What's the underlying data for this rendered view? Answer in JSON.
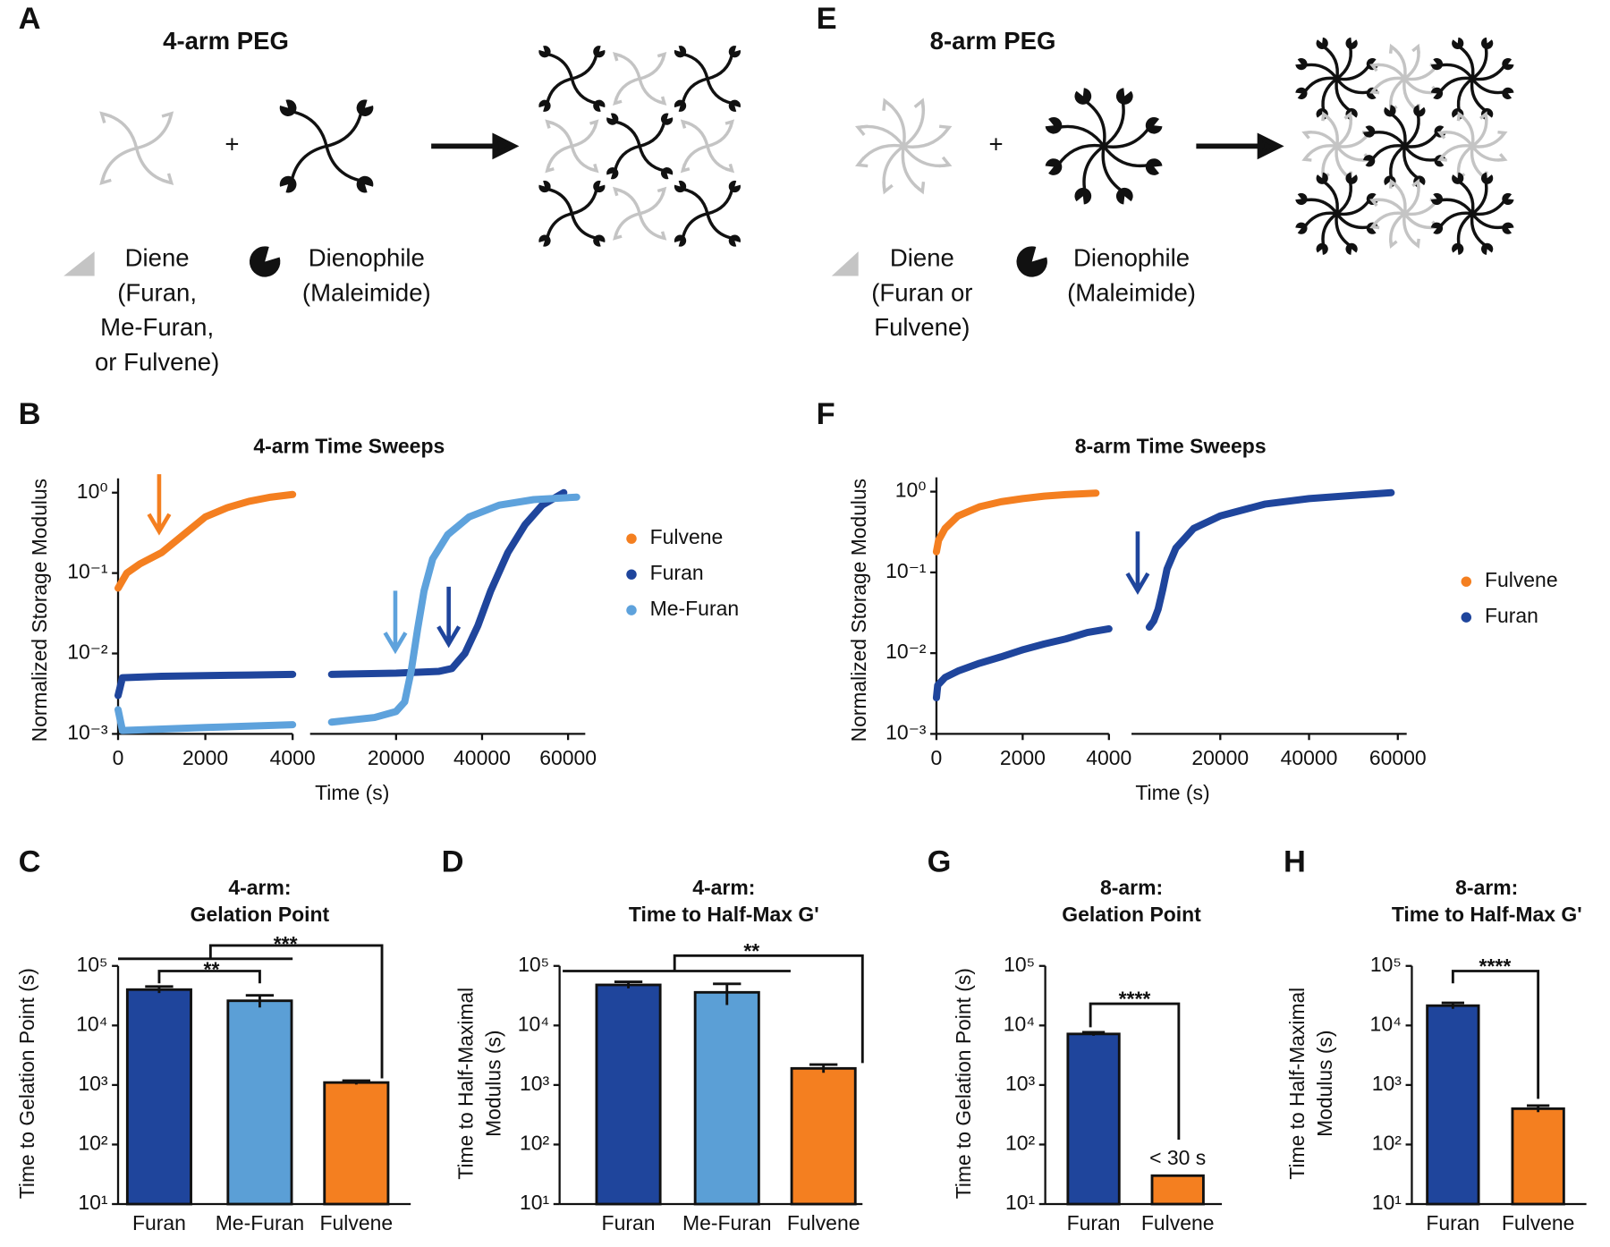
{
  "diagrams": [
    {
      "panel": "A",
      "title": "4-arm PEG",
      "plus": "+",
      "diene": [
        "Diene",
        "(Furan,",
        "Me-Furan,",
        "or Fulvene)"
      ],
      "dienophile": [
        "Dienophile",
        "(Maleimide)"
      ]
    },
    {
      "panel": "E",
      "title": "8-arm PEG",
      "plus": "+",
      "diene": [
        "Diene",
        "(Furan or",
        "Fulvene)"
      ],
      "dienophile": [
        "Dienophile",
        "(Maleimide)"
      ]
    }
  ],
  "chart_data": [
    {
      "panel": "B",
      "type": "line",
      "title": "4-arm Time Sweeps",
      "y_label": "Normalized Storage Modulus",
      "x_label": "Time (s)",
      "y_scale": "log",
      "ylim": [
        0.001,
        1
      ],
      "yticks": [
        {
          "value": 0.001,
          "label": "10⁻³"
        },
        {
          "value": 0.01,
          "label": "10⁻²"
        },
        {
          "value": 0.1,
          "label": "10⁻¹"
        },
        {
          "value": 1,
          "label": "10⁰"
        }
      ],
      "x_segments": [
        {
          "xlim": [
            0,
            4000
          ],
          "xticks": [
            0,
            2000,
            4000
          ]
        },
        {
          "xlim": [
            0,
            64000
          ],
          "xticks": [
            20000,
            40000,
            60000
          ]
        }
      ],
      "legend": "right",
      "series": [
        {
          "name": "Fulvene",
          "color": "#f47f20",
          "x": [
            0,
            200,
            500,
            1000,
            1500,
            2000,
            2500,
            3000,
            3500,
            4000
          ],
          "values": [
            0.065,
            0.1,
            0.13,
            0.18,
            0.3,
            0.5,
            0.65,
            0.78,
            0.88,
            0.95
          ]
        },
        {
          "name": "Furan",
          "color": "#1f459c",
          "x": [
            0,
            100,
            1000,
            2000,
            3000,
            4000,
            null,
            5000,
            20000,
            30000,
            33000,
            36000,
            39000,
            42000,
            46000,
            50000,
            54000,
            59000
          ],
          "values": [
            0.003,
            0.005,
            0.0052,
            0.0053,
            0.0054,
            0.0055,
            null,
            0.0055,
            0.0057,
            0.006,
            0.0065,
            0.01,
            0.022,
            0.06,
            0.18,
            0.4,
            0.7,
            1.0
          ]
        },
        {
          "name": "Me-Furan",
          "color": "#5ea2dc",
          "x": [
            0,
            100,
            2000,
            4000,
            null,
            5000,
            15000,
            20000,
            22000,
            23500,
            25000,
            26500,
            28500,
            32000,
            37000,
            44000,
            52000,
            62000
          ],
          "values": [
            0.002,
            0.0011,
            0.0012,
            0.0013,
            null,
            0.0014,
            0.0016,
            0.0019,
            0.0025,
            0.006,
            0.02,
            0.06,
            0.15,
            0.3,
            0.5,
            0.7,
            0.82,
            0.88
          ]
        }
      ]
    },
    {
      "panel": "F",
      "type": "line",
      "title": "8-arm Time Sweeps",
      "y_label": "Normalized Storage Modulus",
      "x_label": "Time (s)",
      "y_scale": "log",
      "ylim": [
        0.001,
        1
      ],
      "yticks": [
        {
          "value": 0.001,
          "label": "10⁻³"
        },
        {
          "value": 0.01,
          "label": "10⁻²"
        },
        {
          "value": 0.1,
          "label": "10⁻¹"
        },
        {
          "value": 1,
          "label": "10⁰"
        }
      ],
      "x_segments": [
        {
          "xlim": [
            0,
            4000
          ],
          "xticks": [
            0,
            2000,
            4000
          ]
        },
        {
          "xlim": [
            0,
            62000
          ],
          "xticks": [
            20000,
            40000,
            60000
          ]
        }
      ],
      "legend": "right",
      "series": [
        {
          "name": "Fulvene",
          "color": "#f47f20",
          "x": [
            0,
            50,
            200,
            500,
            1000,
            1500,
            2000,
            2500,
            3000,
            3700
          ],
          "values": [
            0.18,
            0.25,
            0.35,
            0.5,
            0.65,
            0.75,
            0.82,
            0.88,
            0.92,
            0.96
          ]
        },
        {
          "name": "Furan",
          "color": "#1f459c",
          "x": [
            0,
            30,
            200,
            500,
            1000,
            1500,
            2000,
            2500,
            3000,
            3500,
            4000,
            null,
            4000,
            5000,
            6000,
            7000,
            8000,
            10000,
            14000,
            20000,
            30000,
            40000,
            50000,
            58500
          ],
          "values": [
            0.0028,
            0.004,
            0.005,
            0.006,
            0.0075,
            0.009,
            0.011,
            0.013,
            0.015,
            0.018,
            0.02,
            null,
            0.021,
            0.025,
            0.035,
            0.06,
            0.11,
            0.2,
            0.35,
            0.5,
            0.7,
            0.82,
            0.9,
            0.97
          ]
        }
      ]
    },
    {
      "panel": "C",
      "type": "bar",
      "title": [
        "4-arm:",
        "Gelation Point"
      ],
      "y_label": [
        "Time to Gelation Point (s)"
      ],
      "y_scale": "log",
      "ylim": [
        10,
        100000
      ],
      "yticks": [
        {
          "value": 10,
          "label": "10¹"
        },
        {
          "value": 100,
          "label": "10²"
        },
        {
          "value": 1000,
          "label": "10³"
        },
        {
          "value": 10000,
          "label": "10⁴"
        },
        {
          "value": 100000,
          "label": "10⁵"
        }
      ],
      "categories": [
        "Furan",
        "Me-Furan",
        "Fulvene"
      ],
      "values": [
        40000,
        26000,
        1100
      ],
      "errors": [
        5000,
        6000,
        80
      ],
      "colors": [
        "#1f459c",
        "#5b9fd6",
        "#f47f20"
      ],
      "annotations": [
        "**",
        "***"
      ]
    },
    {
      "panel": "D",
      "type": "bar",
      "title": [
        "4-arm:",
        "Time to Half-Max G'"
      ],
      "y_label": [
        "Time to Half-Maximal",
        "Modulus (s)"
      ],
      "y_scale": "log",
      "ylim": [
        10,
        100000
      ],
      "yticks": [
        {
          "value": 10,
          "label": "10¹"
        },
        {
          "value": 100,
          "label": "10²"
        },
        {
          "value": 1000,
          "label": "10³"
        },
        {
          "value": 10000,
          "label": "10⁴"
        },
        {
          "value": 100000,
          "label": "10⁵"
        }
      ],
      "categories": [
        "Furan",
        "Me-Furan",
        "Fulvene"
      ],
      "values": [
        48000,
        36000,
        1900
      ],
      "errors": [
        6000,
        14000,
        300
      ],
      "colors": [
        "#1f459c",
        "#5b9fd6",
        "#f47f20"
      ],
      "annotations": [
        "**"
      ]
    },
    {
      "panel": "G",
      "type": "bar",
      "title": [
        "8-arm:",
        "Gelation Point"
      ],
      "y_label": [
        "Time to Gelation Point (s)"
      ],
      "y_scale": "log",
      "ylim": [
        10,
        100000
      ],
      "yticks": [
        {
          "value": 10,
          "label": "10¹"
        },
        {
          "value": 100,
          "label": "10²"
        },
        {
          "value": 1000,
          "label": "10³"
        },
        {
          "value": 10000,
          "label": "10⁴"
        },
        {
          "value": 100000,
          "label": "10⁵"
        }
      ],
      "categories": [
        "Furan",
        "Fulvene"
      ],
      "values": [
        7200,
        30
      ],
      "errors": [
        500,
        null
      ],
      "value_labels": [
        null,
        "< 30 s"
      ],
      "colors": [
        "#1f459c",
        "#f47f20"
      ],
      "annotations": [
        "****"
      ]
    },
    {
      "panel": "H",
      "type": "bar",
      "title": [
        "8-arm:",
        "Time to Half-Max G'"
      ],
      "y_label": [
        "Time to Half-Maximal",
        "Modulus (s)"
      ],
      "y_scale": "log",
      "ylim": [
        10,
        100000
      ],
      "yticks": [
        {
          "value": 10,
          "label": "10¹"
        },
        {
          "value": 100,
          "label": "10²"
        },
        {
          "value": 1000,
          "label": "10³"
        },
        {
          "value": 10000,
          "label": "10⁴"
        },
        {
          "value": 100000,
          "label": "10⁵"
        }
      ],
      "categories": [
        "Furan",
        "Fulvene"
      ],
      "values": [
        21500,
        400
      ],
      "errors": [
        2500,
        50
      ],
      "colors": [
        "#1f459c",
        "#f47f20"
      ],
      "annotations": [
        "****"
      ]
    }
  ]
}
